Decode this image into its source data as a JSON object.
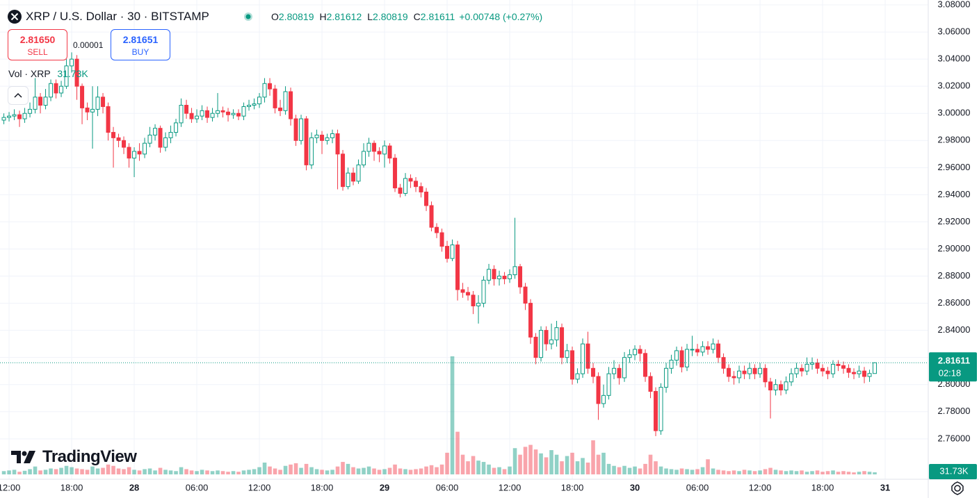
{
  "chart_data": {
    "type": "candlestick",
    "title": "XRP / U.S. Dollar · 30 · BITSTAMP",
    "ohlc_labels": [
      "O",
      "H",
      "L",
      "C"
    ],
    "change_label": "+0.00748 (+0.27%)",
    "countdown": "02:18",
    "volume_title": "Vol · XRP",
    "last_volume_label": "31.73K",
    "up_color": "#089981",
    "down_color": "#f23645",
    "grid": true,
    "xlim": [
      -12.87,
      76.13
    ],
    "xticks": [
      {
        "value": -12,
        "label": "12:00"
      },
      {
        "value": -6,
        "label": "18:00"
      },
      {
        "value": 0,
        "label": "28"
      },
      {
        "value": 6,
        "label": "06:00"
      },
      {
        "value": 12,
        "label": "12:00"
      },
      {
        "value": 18,
        "label": "18:00"
      },
      {
        "value": 24,
        "label": "29"
      },
      {
        "value": 30,
        "label": "06:00"
      },
      {
        "value": 36,
        "label": "12:00"
      },
      {
        "value": 42,
        "label": "18:00"
      },
      {
        "value": 48,
        "label": "30"
      },
      {
        "value": 54,
        "label": "06:00"
      },
      {
        "value": 60,
        "label": "12:00"
      },
      {
        "value": 66,
        "label": "18:00"
      },
      {
        "value": 72,
        "label": "31"
      }
    ],
    "ylim": [
      2.7302,
      3.0836
    ],
    "yticks": [
      {
        "value": 2.76,
        "label": "2.76000"
      },
      {
        "value": 2.78,
        "label": "2.78000"
      },
      {
        "value": 2.8,
        "label": "2.80000"
      },
      {
        "value": 2.82,
        "label": "2.82000"
      },
      {
        "value": 2.84,
        "label": "2.84000"
      },
      {
        "value": 2.86,
        "label": "2.86000"
      },
      {
        "value": 2.88,
        "label": "2.88000"
      },
      {
        "value": 2.9,
        "label": "2.90000"
      },
      {
        "value": 2.92,
        "label": "2.92000"
      },
      {
        "value": 2.94,
        "label": "2.94000"
      },
      {
        "value": 2.96,
        "label": "2.96000"
      },
      {
        "value": 2.98,
        "label": "2.98000"
      },
      {
        "value": 3.0,
        "label": "3.00000"
      },
      {
        "value": 3.02,
        "label": "3.02000"
      },
      {
        "value": 3.04,
        "label": "3.04000"
      },
      {
        "value": 3.06,
        "label": "3.06000"
      },
      {
        "value": 3.08,
        "label": "3.08000"
      }
    ],
    "x": [
      -12.5,
      -12,
      -11.5,
      -11,
      -10.5,
      -10,
      -9.5,
      -9,
      -8.5,
      -8,
      -7.5,
      -7,
      -6.5,
      -6,
      -5.5,
      -5,
      -4.5,
      -4,
      -3.5,
      -3,
      -2.5,
      -2,
      -1.5,
      -1,
      -0.5,
      0,
      0.5,
      1,
      1.5,
      2,
      2.5,
      3,
      3.5,
      4,
      4.5,
      5,
      5.5,
      6,
      6.5,
      7,
      7.5,
      8,
      8.5,
      9,
      9.5,
      10,
      10.5,
      11,
      11.5,
      12,
      12.5,
      13,
      13.5,
      14,
      14.5,
      15,
      15.5,
      16,
      16.5,
      17,
      17.5,
      18,
      18.5,
      19,
      19.5,
      20,
      20.5,
      21,
      21.5,
      22,
      22.5,
      23,
      23.5,
      24,
      24.5,
      25,
      25.5,
      26,
      26.5,
      27,
      27.5,
      28,
      28.5,
      29,
      29.5,
      30,
      30.5,
      31,
      31.5,
      32,
      32.5,
      33,
      33.5,
      34,
      34.5,
      35,
      35.5,
      36,
      36.5,
      37,
      37.5,
      38,
      38.5,
      39,
      39.5,
      40,
      40.5,
      41,
      41.5,
      42,
      42.5,
      43,
      43.5,
      44,
      44.5,
      45,
      45.5,
      46,
      46.5,
      47,
      47.5,
      48,
      48.5,
      49,
      49.5,
      50,
      50.5,
      51,
      51.5,
      52,
      52.5,
      53,
      53.5,
      54,
      54.5,
      55,
      55.5,
      56,
      56.5,
      57,
      57.5,
      58,
      58.5,
      59,
      59.5,
      60,
      60.5,
      61,
      61.5,
      62,
      62.5,
      63,
      63.5,
      64,
      64.5,
      65,
      65.5,
      66,
      66.5,
      67,
      67.5,
      68,
      68.5,
      69,
      69.5,
      70,
      70.5,
      71
    ],
    "open": [
      2.995,
      2.997,
      2.998,
      2.999,
      2.996,
      3.0,
      3.003,
      3.012,
      3.006,
      3.012,
      3.022,
      3.015,
      3.02,
      3.035,
      3.04,
      3.02,
      3.004,
      3.001,
      3.003,
      3.012,
      3.005,
      2.986,
      2.982,
      2.98,
      2.975,
      2.967,
      2.972,
      2.97,
      2.978,
      2.984,
      2.989,
      2.975,
      2.982,
      2.986,
      2.993,
      3.006,
      3.0,
      2.996,
      2.998,
      3.002,
      2.997,
      3.0,
      3.002,
      3.001,
      2.999,
      3.0,
      2.998,
      3.005,
      3.006,
      3.007,
      3.012,
      3.022,
      3.018,
      3.004,
      3.002,
      3.016,
      2.996,
      2.98,
      2.996,
      2.962,
      2.982,
      2.984,
      2.98,
      2.982,
      2.985,
      2.97,
      2.946,
      2.956,
      2.95,
      2.962,
      2.972,
      2.978,
      2.972,
      2.97,
      2.976,
      2.967,
      2.945,
      2.941,
      2.952,
      2.95,
      2.946,
      2.942,
      2.932,
      2.916,
      2.912,
      2.902,
      2.893,
      2.903,
      2.87,
      2.868,
      2.866,
      2.858,
      2.86,
      2.877,
      2.885,
      2.878,
      2.88,
      2.878,
      2.881,
      2.887,
      2.872,
      2.86,
      2.835,
      2.82,
      2.84,
      2.83,
      2.833,
      2.842,
      2.82,
      2.825,
      2.804,
      2.808,
      2.83,
      2.812,
      2.806,
      2.786,
      2.792,
      2.808,
      2.812,
      2.805,
      2.82,
      2.822,
      2.826,
      2.823,
      2.806,
      2.795,
      2.766,
      2.798,
      2.812,
      2.818,
      2.825,
      2.813,
      2.826,
      2.826,
      2.824,
      2.828,
      2.826,
      2.83,
      2.82,
      2.812,
      2.806,
      2.805,
      2.81,
      2.808,
      2.812,
      2.808,
      2.812,
      2.802,
      2.796,
      2.8,
      2.796,
      2.802,
      2.808,
      2.812,
      2.81,
      2.815,
      2.816,
      2.812,
      2.81,
      2.808,
      2.815,
      2.814,
      2.812,
      2.809,
      2.808,
      2.81,
      2.806,
      2.80819
    ],
    "high": [
      3.0,
      3.001,
      3.003,
      3.002,
      3.004,
      3.008,
      3.026,
      3.015,
      3.018,
      3.025,
      3.025,
      3.024,
      3.04,
      3.045,
      3.043,
      3.022,
      3.008,
      3.02,
      3.02,
      3.015,
      3.008,
      2.99,
      2.985,
      2.983,
      2.978,
      2.975,
      2.978,
      2.982,
      2.99,
      2.992,
      2.991,
      2.986,
      2.991,
      2.996,
      3.011,
      3.01,
      3.004,
      3.003,
      3.006,
      3.005,
      3.004,
      3.015,
      3.005,
      3.004,
      3.003,
      3.003,
      3.008,
      3.01,
      3.011,
      3.015,
      3.026,
      3.026,
      3.021,
      3.01,
      3.02,
      3.019,
      2.999,
      2.999,
      2.998,
      2.986,
      2.988,
      2.987,
      2.985,
      2.988,
      2.988,
      2.973,
      2.96,
      2.96,
      2.966,
      2.978,
      2.982,
      2.98,
      2.975,
      2.98,
      2.978,
      2.97,
      2.948,
      2.956,
      2.955,
      2.953,
      2.949,
      2.945,
      2.935,
      2.919,
      2.915,
      2.906,
      2.907,
      2.906,
      2.875,
      2.872,
      2.869,
      2.866,
      2.88,
      2.889,
      2.888,
      2.884,
      2.883,
      2.885,
      2.923,
      2.889,
      2.875,
      2.863,
      2.838,
      2.843,
      2.843,
      2.845,
      2.847,
      2.845,
      2.83,
      2.828,
      2.812,
      2.834,
      2.839,
      2.816,
      2.809,
      2.8,
      2.813,
      2.818,
      2.815,
      2.824,
      2.826,
      2.829,
      2.829,
      2.826,
      2.809,
      2.798,
      2.801,
      2.816,
      2.822,
      2.828,
      2.828,
      2.83,
      2.836,
      2.83,
      2.832,
      2.832,
      2.834,
      2.833,
      2.823,
      2.815,
      2.81,
      2.814,
      2.814,
      2.816,
      2.815,
      2.816,
      2.815,
      2.805,
      2.804,
      2.803,
      2.806,
      2.812,
      2.816,
      2.815,
      2.82,
      2.82,
      2.819,
      2.815,
      2.813,
      2.818,
      2.818,
      2.817,
      2.815,
      2.812,
      2.814,
      2.813,
      2.811,
      2.81612
    ],
    "low": [
      2.992,
      2.994,
      2.995,
      2.99,
      2.993,
      2.997,
      3.0,
      3.0,
      3.003,
      3.009,
      3.011,
      3.012,
      3.018,
      3.03,
      3.01,
      2.992,
      2.995,
      2.974,
      2.998,
      3.0,
      2.98,
      2.96,
      2.975,
      2.97,
      2.96,
      2.953,
      2.965,
      2.967,
      2.975,
      2.98,
      2.971,
      2.972,
      2.978,
      2.983,
      2.99,
      2.996,
      2.993,
      2.993,
      2.995,
      2.993,
      2.994,
      2.997,
      2.997,
      2.994,
      2.996,
      2.995,
      2.995,
      3.002,
      3.003,
      3.004,
      3.008,
      3.013,
      3.0,
      2.998,
      2.999,
      2.991,
      2.976,
      2.977,
      2.958,
      2.959,
      2.978,
      2.97,
      2.977,
      2.978,
      2.944,
      2.943,
      2.944,
      2.947,
      2.948,
      2.96,
      2.968,
      2.965,
      2.964,
      2.96,
      2.963,
      2.942,
      2.938,
      2.939,
      2.945,
      2.942,
      2.938,
      2.928,
      2.913,
      2.908,
      2.898,
      2.89,
      2.891,
      2.862,
      2.864,
      2.862,
      2.852,
      2.845,
      2.857,
      2.874,
      2.873,
      2.873,
      2.874,
      2.875,
      2.878,
      2.867,
      2.855,
      2.83,
      2.815,
      2.817,
      2.825,
      2.826,
      2.828,
      2.815,
      2.816,
      2.8,
      2.801,
      2.805,
      2.808,
      2.801,
      2.774,
      2.783,
      2.789,
      2.804,
      2.8,
      2.802,
      2.816,
      2.818,
      2.817,
      2.802,
      2.79,
      2.762,
      2.763,
      2.794,
      2.808,
      2.814,
      2.809,
      2.81,
      2.821,
      2.821,
      2.821,
      2.822,
      2.823,
      2.816,
      2.808,
      2.802,
      2.8,
      2.801,
      2.804,
      2.804,
      2.804,
      2.805,
      2.798,
      2.775,
      2.792,
      2.792,
      2.793,
      2.799,
      2.805,
      2.806,
      2.807,
      2.811,
      2.808,
      2.806,
      2.804,
      2.805,
      2.81,
      2.808,
      2.805,
      2.804,
      2.805,
      2.801,
      2.802,
      2.80819
    ],
    "close": [
      2.997,
      2.998,
      2.999,
      2.996,
      3.0,
      3.003,
      3.012,
      3.006,
      3.012,
      3.022,
      3.015,
      3.02,
      3.035,
      3.04,
      3.02,
      3.004,
      3.001,
      3.003,
      3.012,
      3.005,
      2.986,
      2.982,
      2.98,
      2.975,
      2.967,
      2.972,
      2.97,
      2.978,
      2.984,
      2.989,
      2.975,
      2.982,
      2.986,
      2.993,
      3.006,
      3.0,
      2.996,
      2.998,
      3.002,
      2.997,
      3.0,
      3.002,
      3.001,
      2.999,
      3.0,
      2.998,
      3.005,
      3.006,
      3.007,
      3.012,
      3.022,
      3.018,
      3.004,
      3.002,
      3.016,
      2.996,
      2.98,
      2.996,
      2.962,
      2.982,
      2.984,
      2.98,
      2.982,
      2.985,
      2.97,
      2.946,
      2.956,
      2.95,
      2.962,
      2.972,
      2.978,
      2.972,
      2.97,
      2.976,
      2.967,
      2.945,
      2.941,
      2.952,
      2.95,
      2.946,
      2.942,
      2.932,
      2.916,
      2.912,
      2.902,
      2.893,
      2.903,
      2.87,
      2.868,
      2.866,
      2.858,
      2.86,
      2.877,
      2.885,
      2.878,
      2.88,
      2.878,
      2.881,
      2.887,
      2.872,
      2.86,
      2.835,
      2.82,
      2.84,
      2.83,
      2.833,
      2.842,
      2.82,
      2.825,
      2.804,
      2.808,
      2.83,
      2.812,
      2.806,
      2.786,
      2.792,
      2.808,
      2.812,
      2.805,
      2.82,
      2.822,
      2.826,
      2.823,
      2.806,
      2.795,
      2.766,
      2.798,
      2.812,
      2.818,
      2.825,
      2.813,
      2.826,
      2.826,
      2.824,
      2.828,
      2.826,
      2.83,
      2.82,
      2.812,
      2.806,
      2.805,
      2.81,
      2.808,
      2.812,
      2.808,
      2.812,
      2.802,
      2.796,
      2.8,
      2.796,
      2.802,
      2.808,
      2.812,
      2.81,
      2.815,
      2.816,
      2.812,
      2.81,
      2.808,
      2.815,
      2.814,
      2.812,
      2.809,
      2.808,
      2.81,
      2.806,
      2.80819,
      2.81611
    ],
    "volume": [
      50000,
      60000,
      70000,
      40000,
      55000,
      80000,
      120000,
      60000,
      70000,
      90000,
      80000,
      100000,
      130000,
      110000,
      90000,
      80000,
      70000,
      120000,
      90000,
      100000,
      150000,
      130000,
      90000,
      80000,
      110000,
      70000,
      60000,
      80000,
      90000,
      60000,
      100000,
      70000,
      60000,
      50000,
      110000,
      80000,
      60000,
      50000,
      70000,
      60000,
      50000,
      60000,
      50000,
      40000,
      50000,
      40000,
      60000,
      70000,
      80000,
      110000,
      180000,
      120000,
      90000,
      70000,
      130000,
      150000,
      170000,
      100000,
      160000,
      110000,
      80000,
      70000,
      60000,
      70000,
      120000,
      190000,
      160000,
      110000,
      90000,
      100000,
      120000,
      90000,
      70000,
      80000,
      100000,
      150000,
      90000,
      80000,
      70000,
      80000,
      90000,
      120000,
      140000,
      110000,
      150000,
      330000,
      1800000,
      650000,
      300000,
      200000,
      280000,
      210000,
      190000,
      150000,
      100000,
      110000,
      80000,
      120000,
      400000,
      300000,
      420000,
      450000,
      380000,
      320000,
      260000,
      370000,
      300000,
      200000,
      280000,
      330000,
      200000,
      250000,
      180000,
      520000,
      300000,
      330000,
      160000,
      130000,
      110000,
      130000,
      100000,
      120000,
      90000,
      160000,
      300000,
      200000,
      120000,
      90000,
      80000,
      70000,
      90000,
      80000,
      70000,
      80000,
      110000,
      230000,
      90000,
      70000,
      60000,
      50000,
      60000,
      50000,
      70000,
      60000,
      50000,
      60000,
      80000,
      100000,
      70000,
      60000,
      50000,
      60000,
      50000,
      60000,
      40000,
      50000,
      60000,
      40000,
      50000,
      60000,
      40000,
      50000,
      40000,
      30000,
      40000,
      50000,
      40000,
      31730
    ]
  },
  "trade_panel": {
    "sell_price": "2.81650",
    "sell_label": "SELL",
    "spread": "0.00001",
    "buy_price": "2.81651",
    "buy_label": "BUY"
  },
  "branding": "TradingView"
}
